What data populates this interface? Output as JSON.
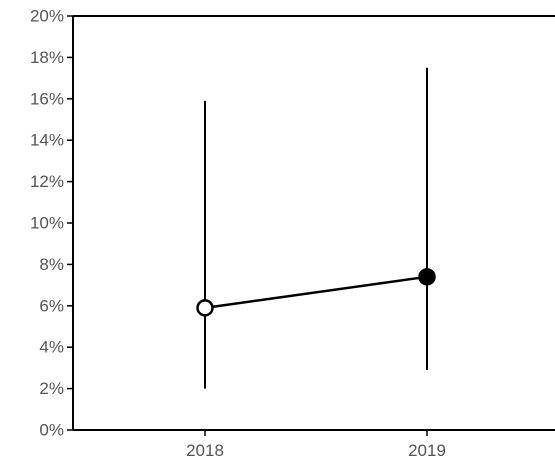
{
  "chart_data": {
    "type": "line",
    "title": "",
    "xlabel": "",
    "ylabel": "",
    "categories": [
      "2018",
      "2019"
    ],
    "series": [
      {
        "values": [
          5.9,
          7.4
        ],
        "lower": [
          2.0,
          2.9
        ],
        "upper": [
          15.9,
          17.5
        ],
        "marker_fill": [
          "#ffffff",
          "#000000"
        ],
        "marker_stroke": "#000000",
        "line_color": "#000000"
      }
    ],
    "ylim": [
      0,
      20
    ],
    "y_ticks": [
      0,
      2,
      4,
      6,
      8,
      10,
      12,
      14,
      16,
      18,
      20
    ],
    "y_tick_labels": [
      "0%",
      "2%",
      "4%",
      "6%",
      "8%",
      "10%",
      "12%",
      "14%",
      "16%",
      "18%",
      "20%"
    ],
    "grid": false,
    "legend": "none"
  }
}
